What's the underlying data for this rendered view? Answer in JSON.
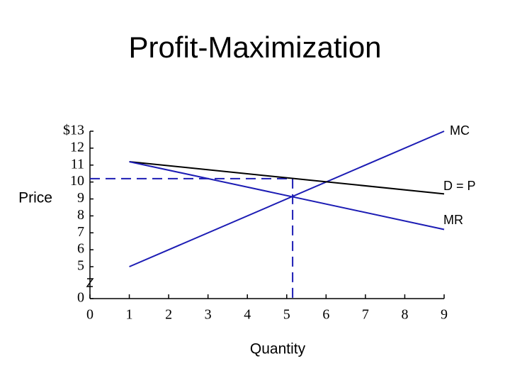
{
  "chart_data": {
    "type": "line",
    "title": "Profit-Maximization",
    "x_label": "Quantity",
    "y_label": "Price",
    "xlim": [
      0,
      9
    ],
    "xticks": [
      0,
      1,
      2,
      3,
      4,
      5,
      6,
      7,
      8,
      9
    ],
    "ylim": [
      0,
      13
    ],
    "yticks": [
      0,
      5,
      6,
      7,
      8,
      9,
      10,
      11,
      12,
      {
        "value": 13,
        "label": "$13"
      }
    ],
    "axis_break": [
      0,
      5
    ],
    "series": [
      {
        "name": "MC",
        "color": "#1c1cb4",
        "x": [
          1,
          9
        ],
        "values": [
          5,
          13
        ]
      },
      {
        "name": "D = P",
        "color": "#000000",
        "x": [
          1,
          9
        ],
        "values": [
          11.2,
          9.3
        ]
      },
      {
        "name": "MR",
        "color": "#1c1cb4",
        "x": [
          1,
          9
        ],
        "values": [
          11.2,
          7.2
        ]
      }
    ],
    "reference_lines": {
      "x": 5.15,
      "y": 10.2,
      "color": "#1c1cb4"
    }
  }
}
